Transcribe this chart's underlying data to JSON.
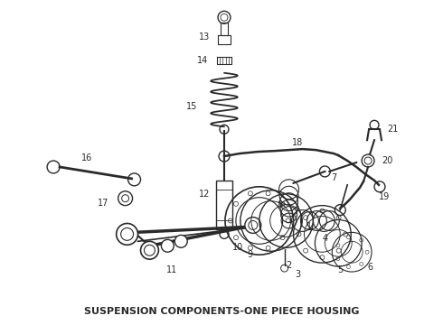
{
  "title": "SUSPENSION COMPONENTS-ONE PIECE HOUSING",
  "title_fontsize": 8.0,
  "title_fontweight": "bold",
  "bg_color": "#ffffff",
  "line_color": "#2a2a2a",
  "fig_width": 4.9,
  "fig_height": 3.6,
  "dpi": 100
}
